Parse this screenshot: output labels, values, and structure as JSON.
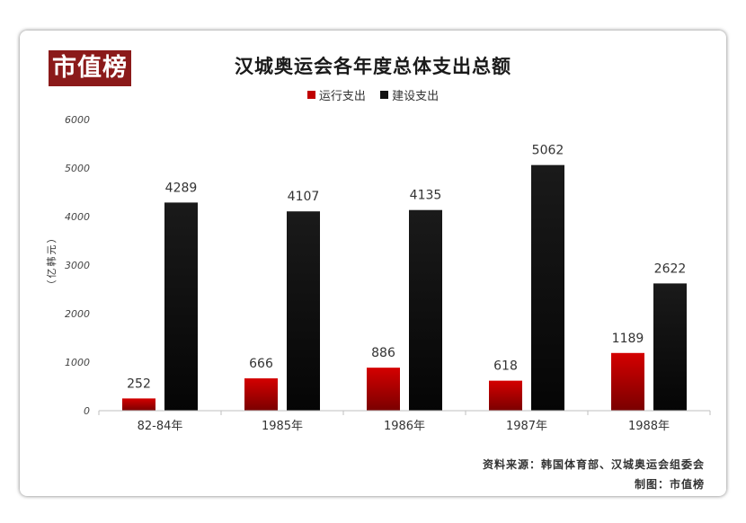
{
  "logo_text": "市值榜",
  "source_text": "资料来源：韩国体育部、汉城奥运会组委会",
  "credit_text": "制图：市值榜",
  "colors": {
    "series1": "#c00000",
    "series2": "#111111",
    "logo_bg": "#8b1a1a"
  },
  "chart_data": {
    "type": "bar",
    "title": "汉城奥运会各年度总体支出总额",
    "xlabel": "",
    "ylabel": "（亿韩元）",
    "categories": [
      "82-84年",
      "1985年",
      "1986年",
      "1987年",
      "1988年"
    ],
    "series": [
      {
        "name": "运行支出",
        "values": [
          252,
          666,
          886,
          618,
          1189
        ]
      },
      {
        "name": "建设支出",
        "values": [
          4289,
          4107,
          4135,
          5062,
          2622
        ]
      }
    ],
    "ylim": [
      0,
      6000
    ],
    "yticks": [
      0,
      1000,
      2000,
      3000,
      4000,
      5000,
      6000
    ],
    "legend_position": "top-center",
    "grid": false
  }
}
